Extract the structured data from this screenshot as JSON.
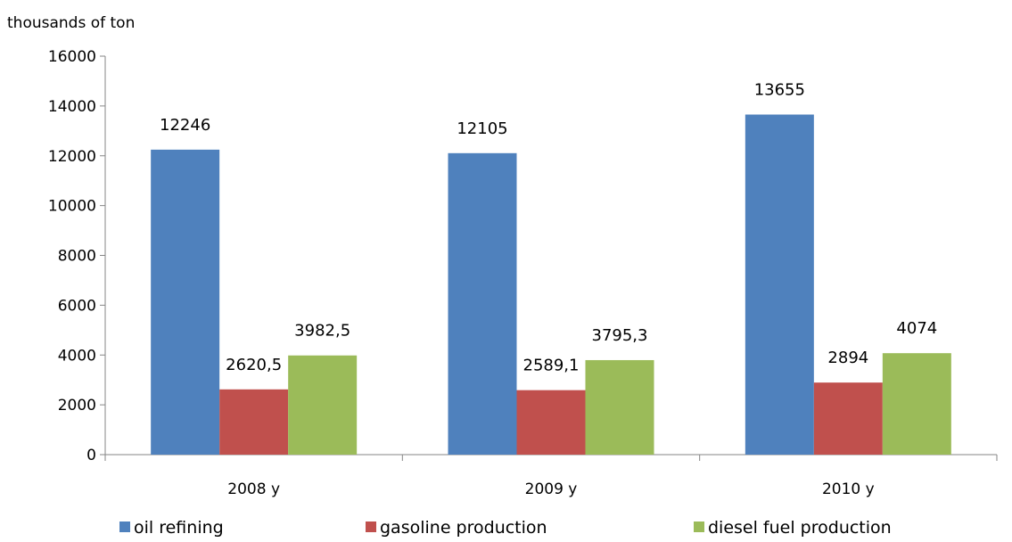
{
  "chart_data": {
    "type": "bar",
    "title": "",
    "unit_label": "thousands of ton",
    "xlabel": "",
    "ylabel": "",
    "categories": [
      "2008 y",
      "2009 y",
      "2010 y"
    ],
    "series": [
      {
        "name": "oil refining",
        "color": "#4f81bd",
        "values": [
          12246,
          12105,
          13655
        ],
        "labels": [
          "12246",
          "12105",
          "13655"
        ]
      },
      {
        "name": "gasoline production",
        "color": "#c0504d",
        "values": [
          2620.5,
          2589.1,
          2894
        ],
        "labels": [
          "2620,5",
          "2589,1",
          "2894"
        ]
      },
      {
        "name": "diesel fuel production",
        "color": "#9bbb59",
        "values": [
          3982.5,
          3795.3,
          4074
        ],
        "labels": [
          "3982,5",
          "3795,3",
          "4074"
        ]
      }
    ],
    "ylim": [
      0,
      16000
    ],
    "yticks": [
      "0",
      "2000",
      "4000",
      "6000",
      "8000",
      "10000",
      "12000",
      "14000",
      "16000"
    ],
    "grid": false,
    "legend_position": "bottom"
  }
}
